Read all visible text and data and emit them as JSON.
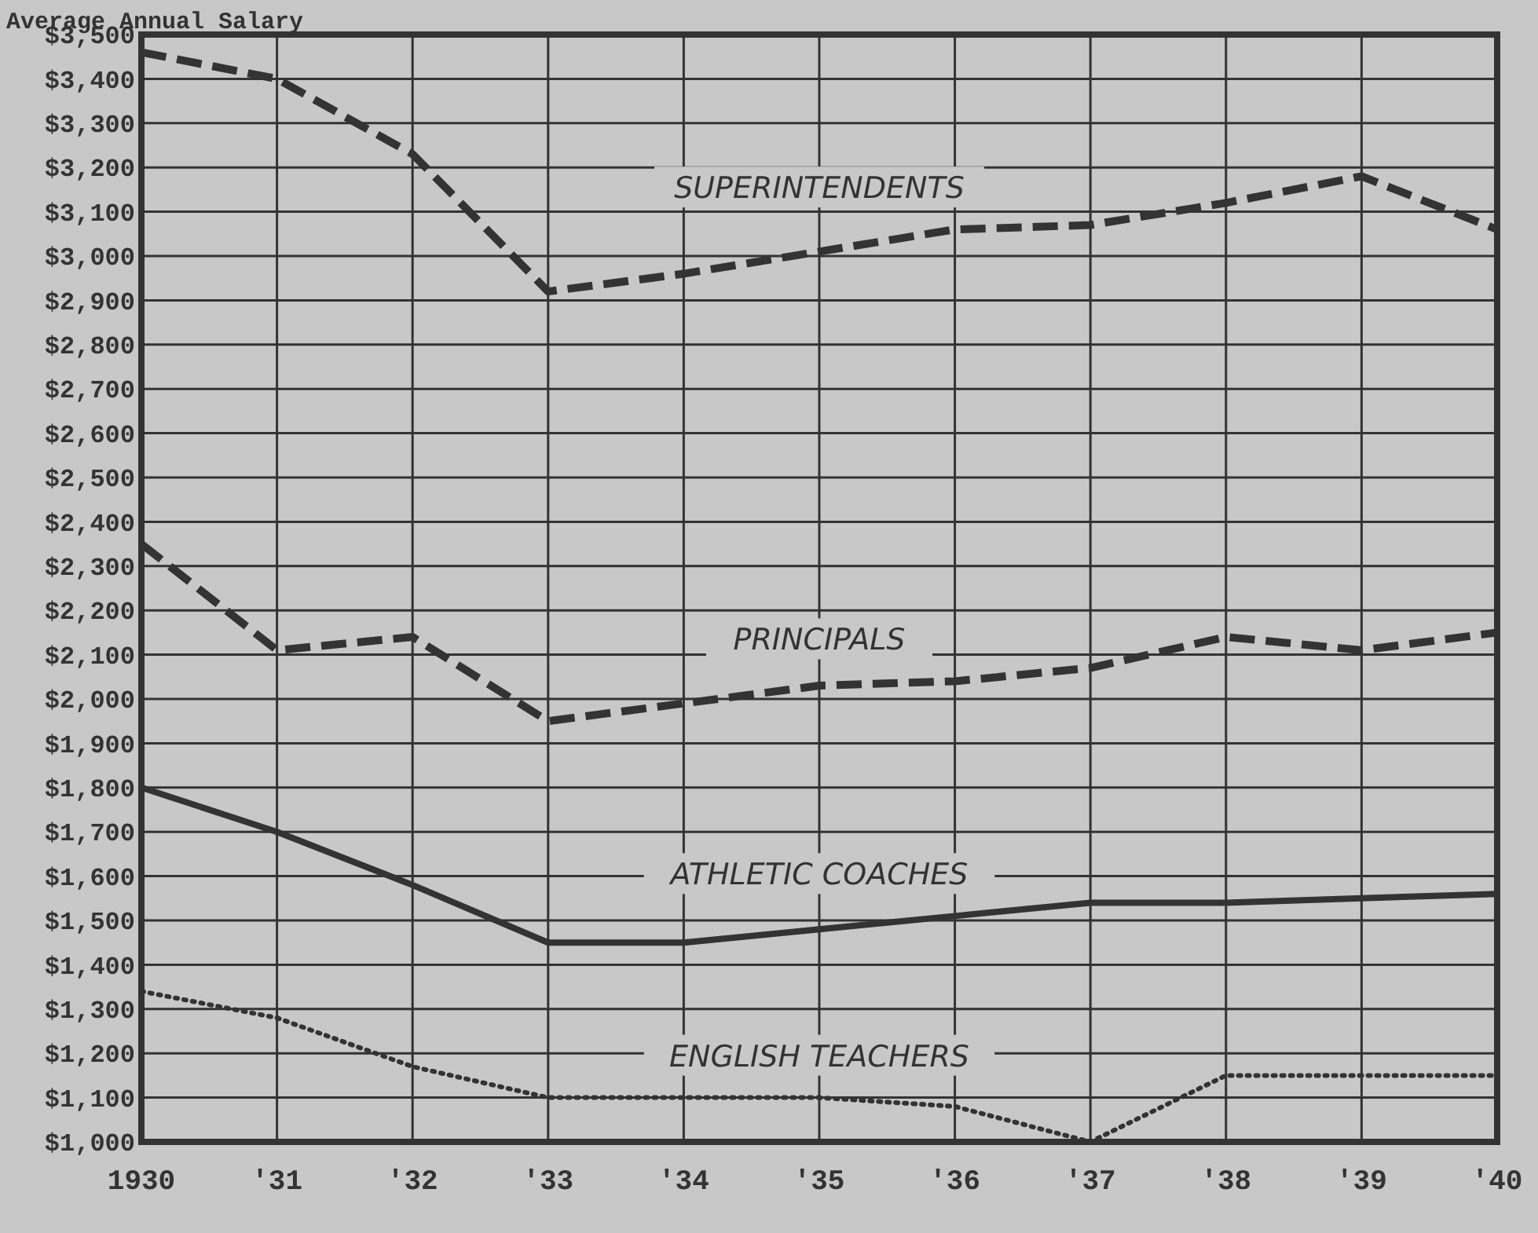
{
  "chart_data": {
    "type": "line",
    "ylabel": "Average Annual Salary",
    "categories": [
      "1930",
      "'31",
      "'32",
      "'33",
      "'34",
      "'35",
      "'36",
      "'37",
      "'38",
      "'39",
      "'40"
    ],
    "series": [
      {
        "name": "SUPERINTENDENTS",
        "color": "#333333",
        "line_style": "dashed",
        "values": [
          3460,
          3400,
          3230,
          2920,
          2960,
          3010,
          3060,
          3070,
          3120,
          3180,
          3060
        ]
      },
      {
        "name": "PRINCIPALS",
        "color": "#333333",
        "line_style": "dashed",
        "values": [
          2350,
          2110,
          2140,
          1950,
          1990,
          2030,
          2040,
          2070,
          2140,
          2110,
          2150
        ]
      },
      {
        "name": "ATHLETIC COACHES",
        "color": "#333333",
        "line_style": "solid",
        "values": [
          1800,
          1700,
          1580,
          1450,
          1450,
          1480,
          1510,
          1540,
          1540,
          1550,
          1560
        ]
      },
      {
        "name": "ENGLISH TEACHERS",
        "color": "#333333",
        "line_style": "dotted",
        "values": [
          1340,
          1280,
          1170,
          1100,
          1100,
          1100,
          1080,
          1000,
          1150,
          1150,
          1150
        ]
      }
    ],
    "ylim": [
      1000,
      3500
    ],
    "yticks": [
      {
        "value": 1000,
        "label": "$1,000"
      },
      {
        "value": 1100,
        "label": "$1,100"
      },
      {
        "value": 1200,
        "label": "$1,200"
      },
      {
        "value": 1300,
        "label": "$1,300"
      },
      {
        "value": 1400,
        "label": "$1,400"
      },
      {
        "value": 1500,
        "label": "$1,500"
      },
      {
        "value": 1600,
        "label": "$1,600"
      },
      {
        "value": 1700,
        "label": "$1,700"
      },
      {
        "value": 1800,
        "label": "$1,800"
      },
      {
        "value": 1900,
        "label": "$1,900"
      },
      {
        "value": 2000,
        "label": "$2,000"
      },
      {
        "value": 2100,
        "label": "$2,100"
      },
      {
        "value": 2200,
        "label": "$2,200"
      },
      {
        "value": 2300,
        "label": "$2,300"
      },
      {
        "value": 2400,
        "label": "$2,400"
      },
      {
        "value": 2500,
        "label": "$2,500"
      },
      {
        "value": 2600,
        "label": "$2,600"
      },
      {
        "value": 2700,
        "label": "$2,700"
      },
      {
        "value": 2800,
        "label": "$2,800"
      },
      {
        "value": 2900,
        "label": "$2,900"
      },
      {
        "value": 3000,
        "label": "$3,000"
      },
      {
        "value": 3100,
        "label": "$3,100"
      },
      {
        "value": 3200,
        "label": "$3,200"
      },
      {
        "value": 3300,
        "label": "$3,300"
      },
      {
        "value": 3400,
        "label": "$3,400"
      },
      {
        "value": 3500,
        "label": "$3,500"
      }
    ],
    "grid": true
  }
}
